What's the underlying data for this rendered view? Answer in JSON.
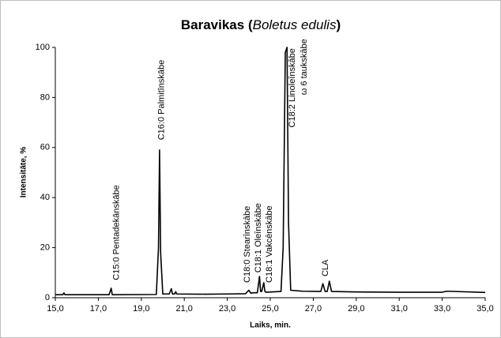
{
  "chart_data": {
    "type": "line",
    "title_parts": [
      "Baravikas (",
      "Boletus edulis",
      ")"
    ],
    "x_label": "Laiks, min.",
    "y_label": "Intensitāte, %",
    "xlim": [
      15,
      35
    ],
    "ylim": [
      0,
      100
    ],
    "xticks": [
      {
        "value": 15,
        "label": "15,0"
      },
      {
        "value": 17,
        "label": "17,0"
      },
      {
        "value": 19,
        "label": "19,0"
      },
      {
        "value": 21,
        "label": "21,0"
      },
      {
        "value": 23,
        "label": "23,0"
      },
      {
        "value": 25,
        "label": "25,0"
      },
      {
        "value": 27,
        "label": "27,0"
      },
      {
        "value": 29,
        "label": "29,0"
      },
      {
        "value": 31,
        "label": "31,0"
      },
      {
        "value": 33,
        "label": "33,0"
      },
      {
        "value": 35,
        "label": "35,0"
      }
    ],
    "yticks": [
      0,
      20,
      40,
      60,
      80,
      100
    ],
    "grid": false,
    "x": [
      15.0,
      15.35,
      15.4,
      15.45,
      17.5,
      17.6,
      17.65,
      19.7,
      19.8,
      19.85,
      19.9,
      20.0,
      20.3,
      20.4,
      20.45,
      20.55,
      20.6,
      20.65,
      22.0,
      23.0,
      23.85,
      24.0,
      24.1,
      24.2,
      24.4,
      24.5,
      24.55,
      24.6,
      24.7,
      24.75,
      24.8,
      25.5,
      25.6,
      25.7,
      25.78,
      25.85,
      25.95,
      26.5,
      27.35,
      27.45,
      27.55,
      27.65,
      27.75,
      27.85,
      29.0,
      31.0,
      33.0,
      33.2,
      35.0
    ],
    "series": [
      {
        "color": "#000000",
        "values": [
          1.2,
          1.2,
          1.9,
          1.2,
          1.2,
          3.8,
          1.2,
          1.3,
          20,
          59,
          18,
          1.5,
          1.5,
          3.6,
          1.5,
          1.5,
          2.4,
          1.5,
          1.4,
          1.5,
          1.6,
          3,
          1.8,
          2,
          2,
          8.5,
          2.5,
          2.5,
          6,
          2.5,
          2.2,
          2.5,
          20,
          98,
          100,
          30,
          3,
          2.6,
          2.5,
          5.6,
          2.5,
          2.5,
          6.6,
          2.5,
          2.3,
          2.2,
          2.2,
          2.6,
          2.1
        ]
      }
    ],
    "annotations": [
      {
        "text": "C15:0 Pentadekānskābe",
        "x": 17.85,
        "y": 7
      },
      {
        "text": "C16:0 Palmitīnskābe",
        "x": 19.95,
        "y": 63
      },
      {
        "text": "C18:0 Stearīnskābe",
        "x": 23.93,
        "y": 6
      },
      {
        "text": "C18:1 Oleīnskābe",
        "x": 24.45,
        "y": 10
      },
      {
        "text": "C18:1 Vakcēnskābe",
        "x": 24.96,
        "y": 6
      },
      {
        "text": "C18:2 Linoleīnskābe",
        "x": 26.03,
        "y": 68
      },
      {
        "text": "ω 6 taukskābe",
        "x": 26.58,
        "y": 81
      },
      {
        "text": "CLA",
        "x": 27.57,
        "y": 8.5
      }
    ]
  }
}
